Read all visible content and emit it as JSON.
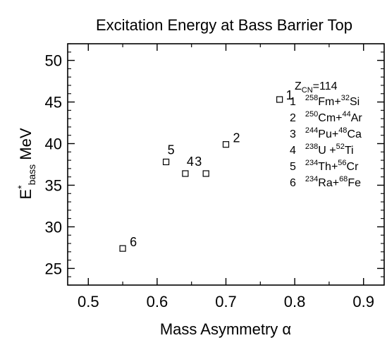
{
  "chart_data": {
    "type": "scatter",
    "title": "Excitation Energy at Bass Barrier Top",
    "xlabel": "Mass Asymmetry α",
    "ylabel": {
      "base": "E",
      "sup": "*",
      "sub": "bass",
      "unit": " MeV"
    },
    "xlim": [
      0.47,
      0.93
    ],
    "ylim": [
      23,
      52
    ],
    "xticks": [
      0.5,
      0.6,
      0.7,
      0.8,
      0.9
    ],
    "xtick_labels": [
      "0.5",
      "0.6",
      "0.7",
      "0.8",
      "0.9"
    ],
    "yticks": [
      25,
      30,
      35,
      40,
      45,
      50
    ],
    "ytick_labels": [
      "25",
      "30",
      "35",
      "40",
      "45",
      "50"
    ],
    "grid": false,
    "legend_placement": "top-right",
    "points": [
      {
        "label": "1",
        "x": 0.778,
        "y": 45.3
      },
      {
        "label": "2",
        "x": 0.7,
        "y": 39.9
      },
      {
        "label": "3",
        "x": 0.671,
        "y": 36.4
      },
      {
        "label": "4",
        "x": 0.641,
        "y": 36.4
      },
      {
        "label": "5",
        "x": 0.613,
        "y": 37.8
      },
      {
        "label": "6",
        "x": 0.55,
        "y": 27.4
      }
    ],
    "legend": {
      "header": {
        "base": "Z",
        "sub": "CN",
        "rest": "=114"
      },
      "entries": [
        {
          "num": "1",
          "a_sup": "258",
          "a": "Fm",
          "plus": "+",
          "b_sup": "32",
          "b": "Si"
        },
        {
          "num": "2",
          "a_sup": "250",
          "a": "Cm",
          "plus": "+",
          "b_sup": "44",
          "b": "Ar"
        },
        {
          "num": "3",
          "a_sup": "244",
          "a": "Pu",
          "plus": "+",
          "b_sup": "48",
          "b": "Ca"
        },
        {
          "num": "4",
          "a_sup": "238",
          "a": "U",
          "plus": " +",
          "b_sup": "52",
          "b": "Ti"
        },
        {
          "num": "5",
          "a_sup": "234",
          "a": "Th",
          "plus": "+",
          "b_sup": "56",
          "b": "Cr"
        },
        {
          "num": "6",
          "a_sup": "234",
          "a": "Ra",
          "plus": "+",
          "b_sup": "68",
          "b": "Fe"
        }
      ]
    }
  }
}
